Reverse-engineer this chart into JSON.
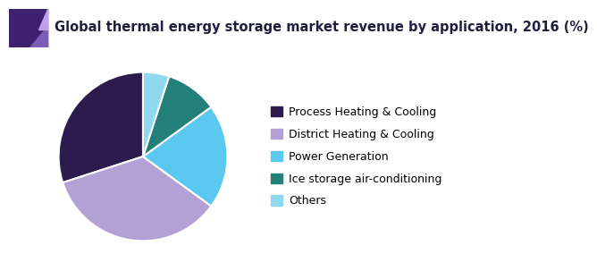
{
  "title": "Global thermal energy storage market revenue by application, 2016 (%)",
  "title_color": "#1f1f3d",
  "title_fontsize": 10.5,
  "labels": [
    "Process Heating & Cooling",
    "District Heating & Cooling",
    "Power Generation",
    "Ice storage air-conditioning",
    "Others"
  ],
  "values": [
    30,
    35,
    20,
    10,
    5
  ],
  "colors": [
    "#2d1b4e",
    "#b3a0d4",
    "#5bc8f0",
    "#237f7a",
    "#90d8f0"
  ],
  "startangle": 90,
  "legend_fontsize": 9,
  "background_color": "#ffffff",
  "header_line_color": "#6b3fa0",
  "header_bg_color": "#3d2070",
  "header_accent_color": "#7b5cb8",
  "wedge_edge_color": "#ffffff",
  "wedge_linewidth": 1.5
}
